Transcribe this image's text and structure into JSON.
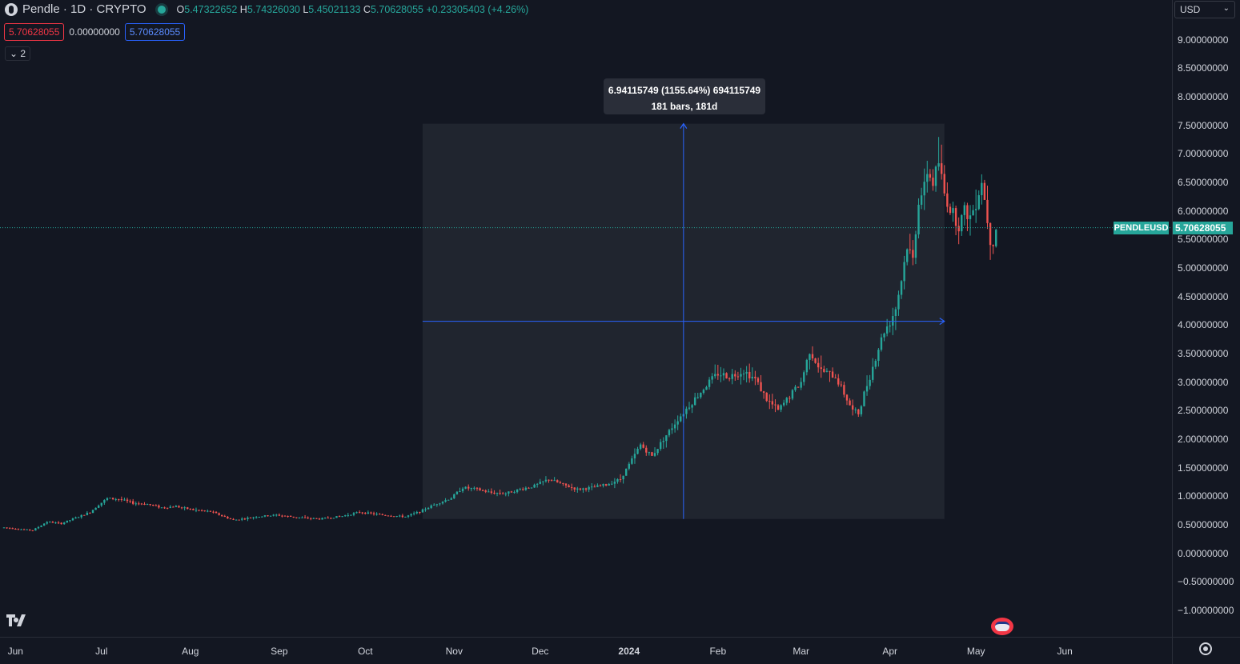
{
  "header": {
    "title": "Pendle · 1D · CRYPTO",
    "open_prefix": "O",
    "open": "5.47322652",
    "high_prefix": "H",
    "high": "5.74326030",
    "low_prefix": "L",
    "low": "5.45021133",
    "close_prefix": "C",
    "close": "5.70628055",
    "change": "+0.23305403 (+4.26%)"
  },
  "order_row": {
    "sell": "5.70628055",
    "spread": "0.00000000",
    "buy": "5.70628055"
  },
  "indicator_toggle": "2",
  "currency": {
    "selected": "USD"
  },
  "price_tag": {
    "symbol": "PENDLEUSD",
    "value": "5.70628055"
  },
  "measure": {
    "line1": "6.94115749 (1155.64%) 694115749",
    "line2": "181 bars, 181d"
  },
  "colors": {
    "background": "#131722",
    "up": "#26a69a",
    "down": "#ef5350",
    "measure": "#2962ff"
  },
  "chart_data": {
    "type": "candlestick",
    "title": "Pendle · 1D · CRYPTO",
    "ylim": [
      -1.25,
      9.5
    ],
    "yticks": [
      "9.00000000",
      "8.50000000",
      "8.00000000",
      "7.50000000",
      "7.00000000",
      "6.50000000",
      "6.00000000",
      "5.50000000",
      "5.00000000",
      "4.50000000",
      "4.00000000",
      "3.50000000",
      "3.00000000",
      "2.50000000",
      "2.00000000",
      "1.50000000",
      "1.00000000",
      "0.50000000",
      "0.00000000",
      "−0.50000000",
      "−1.00000000"
    ],
    "xticks": [
      {
        "label": "Jun",
        "day": 4,
        "bold": false
      },
      {
        "label": "Jul",
        "day": 34,
        "bold": false
      },
      {
        "label": "Aug",
        "day": 65,
        "bold": false
      },
      {
        "label": "Sep",
        "day": 96,
        "bold": false
      },
      {
        "label": "Oct",
        "day": 126,
        "bold": false
      },
      {
        "label": "Nov",
        "day": 157,
        "bold": false
      },
      {
        "label": "Dec",
        "day": 187,
        "bold": false
      },
      {
        "label": "2024",
        "day": 218,
        "bold": true
      },
      {
        "label": "Feb",
        "day": 249,
        "bold": false
      },
      {
        "label": "Mar",
        "day": 278,
        "bold": false
      },
      {
        "label": "Apr",
        "day": 309,
        "bold": false
      },
      {
        "label": "May",
        "day": 339,
        "bold": false
      },
      {
        "label": "Jun",
        "day": 370,
        "bold": false
      }
    ],
    "price_anchors": [
      [
        0,
        0.45
      ],
      [
        10,
        0.4
      ],
      [
        15,
        0.55
      ],
      [
        20,
        0.52
      ],
      [
        25,
        0.62
      ],
      [
        30,
        0.72
      ],
      [
        33,
        0.85
      ],
      [
        36,
        0.96
      ],
      [
        40,
        0.95
      ],
      [
        45,
        0.88
      ],
      [
        50,
        0.86
      ],
      [
        55,
        0.8
      ],
      [
        60,
        0.82
      ],
      [
        66,
        0.76
      ],
      [
        72,
        0.73
      ],
      [
        80,
        0.58
      ],
      [
        88,
        0.64
      ],
      [
        95,
        0.67
      ],
      [
        102,
        0.63
      ],
      [
        110,
        0.6
      ],
      [
        118,
        0.65
      ],
      [
        124,
        0.72
      ],
      [
        132,
        0.67
      ],
      [
        140,
        0.64
      ],
      [
        145,
        0.73
      ],
      [
        150,
        0.85
      ],
      [
        156,
        0.97
      ],
      [
        160,
        1.15
      ],
      [
        165,
        1.12
      ],
      [
        170,
        1.06
      ],
      [
        175,
        1.05
      ],
      [
        180,
        1.12
      ],
      [
        185,
        1.18
      ],
      [
        190,
        1.3
      ],
      [
        195,
        1.2
      ],
      [
        200,
        1.12
      ],
      [
        205,
        1.15
      ],
      [
        210,
        1.2
      ],
      [
        215,
        1.3
      ],
      [
        218,
        1.55
      ],
      [
        222,
        1.9
      ],
      [
        226,
        1.7
      ],
      [
        230,
        2.0
      ],
      [
        235,
        2.35
      ],
      [
        240,
        2.65
      ],
      [
        245,
        2.95
      ],
      [
        249,
        3.15
      ],
      [
        253,
        3.1
      ],
      [
        258,
        3.2
      ],
      [
        262,
        3.05
      ],
      [
        266,
        2.7
      ],
      [
        270,
        2.5
      ],
      [
        274,
        2.75
      ],
      [
        278,
        3.0
      ],
      [
        281,
        3.55
      ],
      [
        285,
        3.2
      ],
      [
        290,
        3.1
      ],
      [
        293,
        2.8
      ],
      [
        296,
        2.5
      ],
      [
        298,
        2.45
      ],
      [
        300,
        2.8
      ],
      [
        302,
        3.1
      ],
      [
        305,
        3.6
      ],
      [
        307,
        3.9
      ],
      [
        309,
        4.05
      ],
      [
        311,
        4.3
      ],
      [
        313,
        4.8
      ],
      [
        315,
        5.4
      ],
      [
        317,
        5.15
      ],
      [
        319,
        6.2
      ],
      [
        321,
        6.4
      ],
      [
        322,
        6.7
      ],
      [
        324,
        6.5
      ],
      [
        326,
        6.85
      ],
      [
        328,
        6.3
      ],
      [
        330,
        6.05
      ],
      [
        333,
        5.75
      ],
      [
        335,
        6.0
      ],
      [
        337,
        5.9
      ],
      [
        339,
        6.15
      ],
      [
        341,
        6.55
      ],
      [
        343,
        5.85
      ],
      [
        344,
        5.5
      ],
      [
        345,
        5.47
      ],
      [
        346,
        5.71
      ]
    ]
  }
}
